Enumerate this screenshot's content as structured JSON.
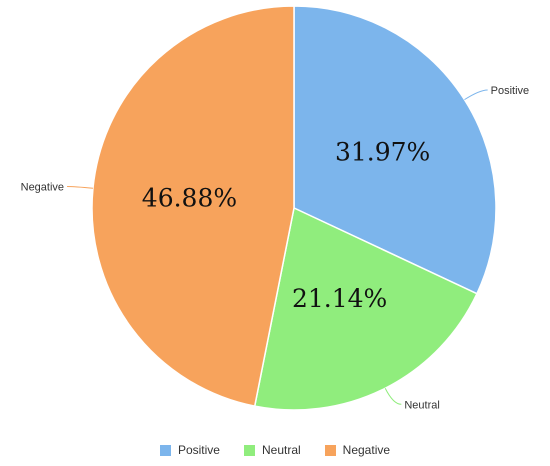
{
  "chart_data": {
    "type": "pie",
    "categories": [
      "Positive",
      "Neutral",
      "Negative"
    ],
    "values": [
      31.97,
      21.14,
      46.88
    ],
    "data_labels": [
      "31.97%",
      "21.14%",
      "46.88%"
    ],
    "colors": [
      "#7cb5ec",
      "#90ed7d",
      "#f7a35c"
    ],
    "legend_position": "bottom",
    "title": "",
    "start": "top",
    "direction": "clockwise"
  }
}
